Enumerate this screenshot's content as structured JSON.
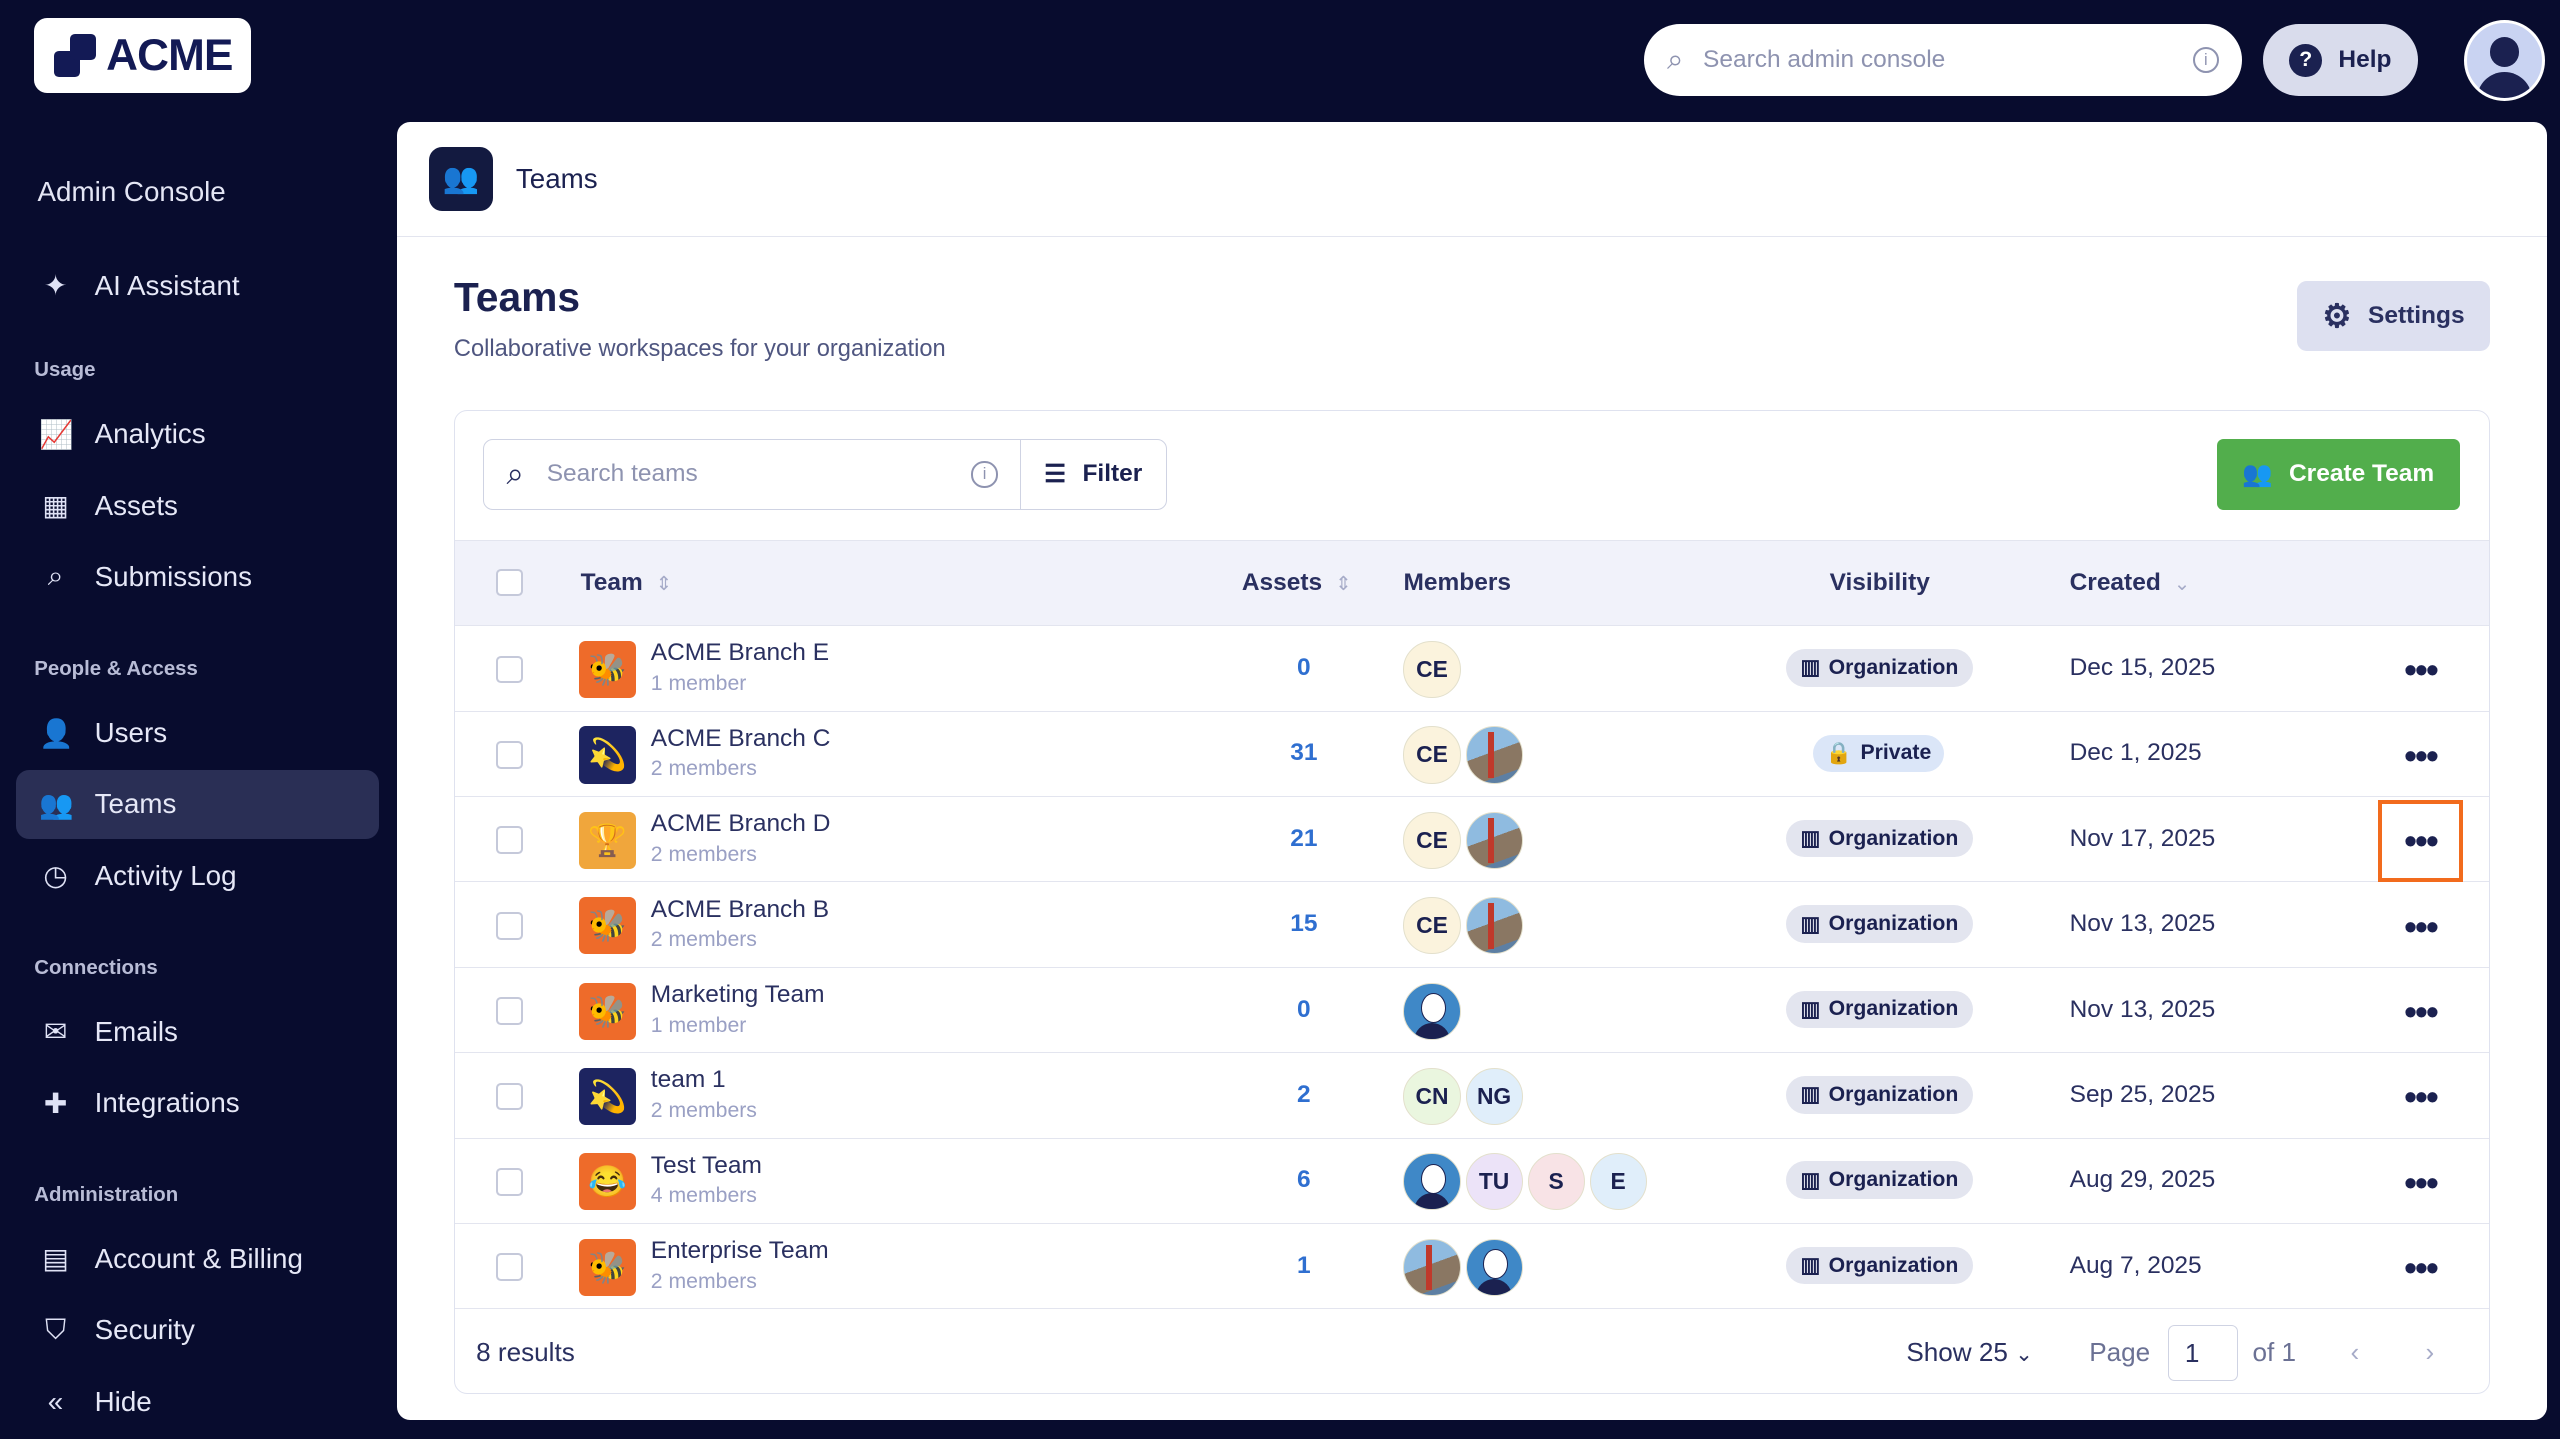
{
  "brand": {
    "logo_text": "ACME"
  },
  "topbar": {
    "search_placeholder": "Search admin console",
    "help_label": "Help"
  },
  "sidebar": {
    "title": "Admin Console",
    "ai_assistant": "AI Assistant",
    "sections": [
      {
        "label": "Usage",
        "items": [
          {
            "label": "Analytics",
            "icon": "chart-icon"
          },
          {
            "label": "Assets",
            "icon": "grid-icon"
          },
          {
            "label": "Submissions",
            "icon": "search-icon"
          }
        ]
      },
      {
        "label": "People & Access",
        "items": [
          {
            "label": "Users",
            "icon": "user-icon"
          },
          {
            "label": "Teams",
            "icon": "team-icon",
            "active": true
          },
          {
            "label": "Activity Log",
            "icon": "history-icon"
          }
        ]
      },
      {
        "label": "Connections",
        "items": [
          {
            "label": "Emails",
            "icon": "mail-icon"
          },
          {
            "label": "Integrations",
            "icon": "puzzle-icon"
          }
        ]
      },
      {
        "label": "Administration",
        "items": [
          {
            "label": "Account & Billing",
            "icon": "card-icon"
          },
          {
            "label": "Security",
            "icon": "shield-icon"
          }
        ]
      }
    ],
    "hide_label": "Hide"
  },
  "header": {
    "breadcrumb": "Teams"
  },
  "page": {
    "title": "Teams",
    "subtitle": "Collaborative workspaces for your organization",
    "settings_label": "Settings"
  },
  "toolbar": {
    "search_placeholder": "Search teams",
    "filter_label": "Filter",
    "create_label": "Create Team"
  },
  "table": {
    "columns": {
      "team": "Team",
      "assets": "Assets",
      "members": "Members",
      "visibility": "Visibility",
      "created": "Created"
    },
    "rows": [
      {
        "name": "ACME Branch E",
        "members_count": "1 member",
        "icon": "🐝",
        "icon_bg": "#ee6b2a",
        "assets": "0",
        "members": [
          {
            "t": "CE",
            "bg": "#fbf3dd"
          }
        ],
        "visibility": "Organization",
        "created": "Dec 15, 2025"
      },
      {
        "name": "ACME Branch C",
        "members_count": "2 members",
        "icon": "💫",
        "icon_bg": "#1d2460",
        "assets": "31",
        "members": [
          {
            "t": "CE",
            "bg": "#fbf3dd"
          },
          {
            "t": "",
            "photo": "bridge"
          }
        ],
        "visibility": "Private",
        "created": "Dec 1, 2025"
      },
      {
        "name": "ACME Branch D",
        "members_count": "2 members",
        "icon": "🏆",
        "icon_bg": "#f0a63c",
        "assets": "21",
        "members": [
          {
            "t": "CE",
            "bg": "#fbf3dd"
          },
          {
            "t": "",
            "photo": "bridge"
          }
        ],
        "visibility": "Organization",
        "created": "Nov 17, 2025",
        "highlight": true
      },
      {
        "name": "ACME Branch B",
        "members_count": "2 members",
        "icon": "🐝",
        "icon_bg": "#ee6b2a",
        "assets": "15",
        "members": [
          {
            "t": "CE",
            "bg": "#fbf3dd"
          },
          {
            "t": "",
            "photo": "bridge"
          }
        ],
        "visibility": "Organization",
        "created": "Nov 13, 2025"
      },
      {
        "name": "Marketing Team",
        "members_count": "1 member",
        "icon": "🐝",
        "icon_bg": "#ee6b2a",
        "assets": "0",
        "members": [
          {
            "t": "",
            "photo": "face"
          }
        ],
        "visibility": "Organization",
        "created": "Nov 13, 2025"
      },
      {
        "name": "team 1",
        "members_count": "2 members",
        "icon": "💫",
        "icon_bg": "#1d2460",
        "assets": "2",
        "members": [
          {
            "t": "CN",
            "bg": "#eaf6df"
          },
          {
            "t": "NG",
            "bg": "#e0eefa"
          }
        ],
        "visibility": "Organization",
        "created": "Sep 25, 2025"
      },
      {
        "name": "Test Team",
        "members_count": "4 members",
        "icon": "😂",
        "icon_bg": "#ee6b2a",
        "assets": "6",
        "members": [
          {
            "t": "",
            "photo": "face"
          },
          {
            "t": "TU",
            "bg": "#ece3f8"
          },
          {
            "t": "S",
            "bg": "#f8e3e6"
          },
          {
            "t": "E",
            "bg": "#e0eefa"
          }
        ],
        "visibility": "Organization",
        "created": "Aug 29, 2025"
      },
      {
        "name": "Enterprise Team",
        "members_count": "2 members",
        "icon": "🐝",
        "icon_bg": "#ee6b2a",
        "assets": "1",
        "members": [
          {
            "t": "",
            "photo": "bridge"
          },
          {
            "t": "",
            "photo": "face"
          }
        ],
        "visibility": "Organization",
        "created": "Aug 7, 2025"
      }
    ]
  },
  "footer": {
    "results": "8 results",
    "show_label": "Show 25",
    "page_label": "Page",
    "page_value": "1",
    "of_label": "of 1"
  },
  "colors": {
    "sidebar": "#080c2e",
    "accent_green": "#52ae4c",
    "highlight": "#f26b1d",
    "link": "#2f6fd0"
  }
}
